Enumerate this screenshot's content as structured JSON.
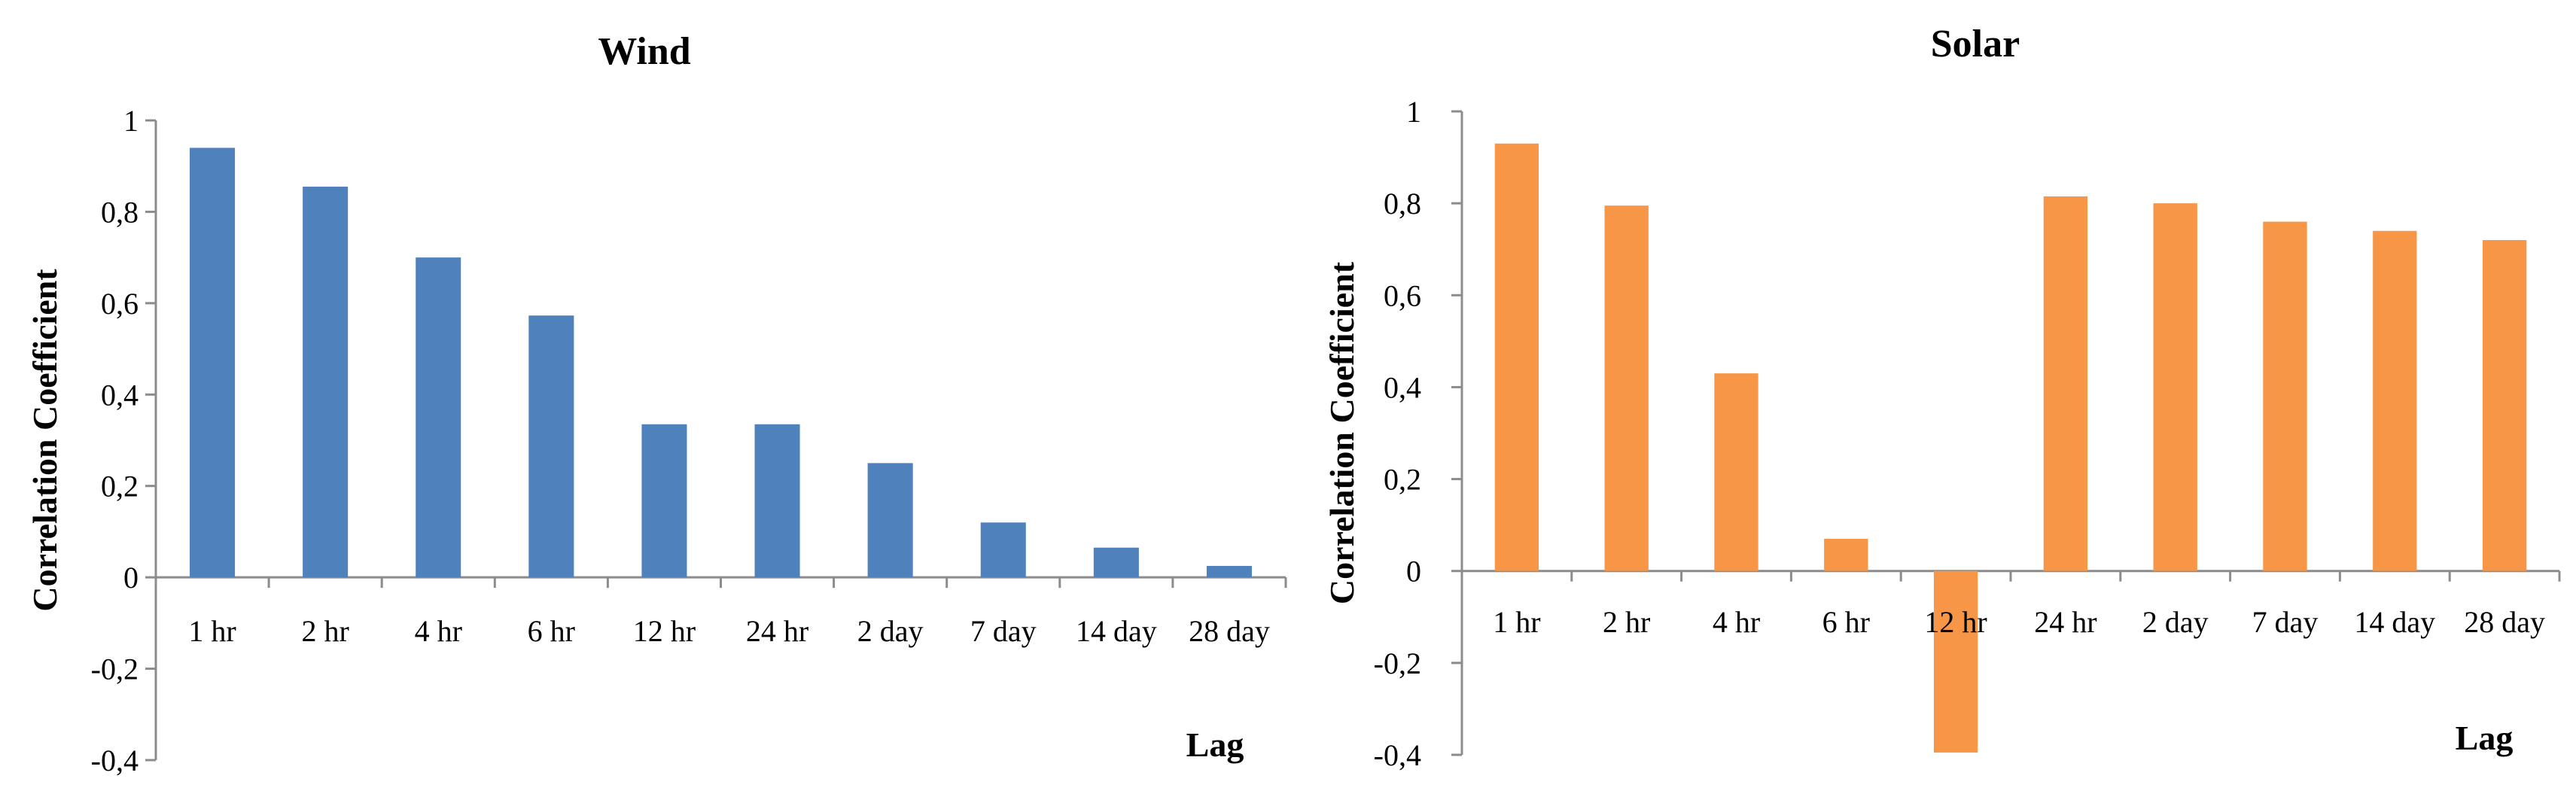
{
  "chart_data": [
    {
      "type": "bar",
      "title": "Wind",
      "xlabel": "Lag",
      "ylabel": "Correlation  Coefficient",
      "categories": [
        "1 hr",
        "2 hr",
        "4 hr",
        "6 hr",
        "12 hr",
        "24 hr",
        "2 day",
        "7 day",
        "14 day",
        "28 day"
      ],
      "values": [
        0.94,
        0.855,
        0.7,
        0.573,
        0.335,
        0.335,
        0.25,
        0.12,
        0.065,
        0.025
      ],
      "ylim": [
        -0.4,
        1
      ],
      "yticks": [
        -0.4,
        -0.2,
        0,
        0.2,
        0.4,
        0.6,
        0.8,
        1
      ],
      "ytick_labels": [
        "-0,4",
        "-0,2",
        "0",
        "0,2",
        "0,4",
        "0,6",
        "0,8",
        "1"
      ],
      "grid": false,
      "legend": "none",
      "color": "#4f81bd"
    },
    {
      "type": "bar",
      "title": "Solar",
      "xlabel": "Lag",
      "ylabel": "Correlation  Coefficient",
      "categories": [
        "1 hr",
        "2 hr",
        "4 hr",
        "6 hr",
        "12 hr",
        "24 hr",
        "2 day",
        "7 day",
        "14 day",
        "28 day"
      ],
      "values": [
        0.93,
        0.795,
        0.43,
        0.07,
        -0.395,
        0.815,
        0.8,
        0.76,
        0.74,
        0.72
      ],
      "ylim": [
        -0.4,
        1
      ],
      "yticks": [
        -0.4,
        -0.2,
        0,
        0.2,
        0.4,
        0.6,
        0.8,
        1
      ],
      "ytick_labels": [
        "-0,4",
        "-0,2",
        "0",
        "0,2",
        "0,4",
        "0,6",
        "0,8",
        "1"
      ],
      "grid": false,
      "legend": "none",
      "color": "#f79646"
    }
  ]
}
